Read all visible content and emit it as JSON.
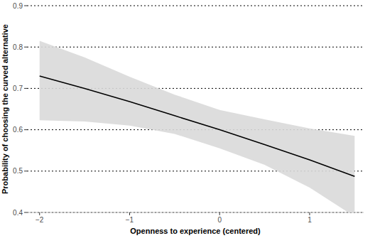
{
  "chart_data": {
    "type": "line",
    "x_label": "Openness to experience (centered)",
    "y_label": "Probability of choosing the curved alternative",
    "x": [
      -2,
      -1.5,
      -1,
      -0.5,
      0,
      0.5,
      1,
      1.5
    ],
    "series": [
      {
        "color": "#000000",
        "band_color": "#d9d9d9",
        "values": [
          0.73,
          0.7,
          0.668,
          0.634,
          0.6,
          0.564,
          0.527,
          0.487
        ],
        "lower": [
          0.623,
          0.62,
          0.61,
          0.59,
          0.555,
          0.515,
          0.46,
          0.39
        ],
        "upper": [
          0.815,
          0.775,
          0.728,
          0.685,
          0.648,
          0.625,
          0.603,
          0.585
        ]
      }
    ],
    "xlim": [
      -2.14,
      1.6
    ],
    "ylim": [
      0.4,
      0.9
    ],
    "xticks": [
      {
        "value": -2,
        "label": "−2"
      },
      {
        "value": -1,
        "label": "−1"
      },
      0,
      1
    ],
    "yticks": [
      0.4,
      0.5,
      0.6,
      0.7,
      0.8,
      0.9
    ],
    "grid": true
  }
}
